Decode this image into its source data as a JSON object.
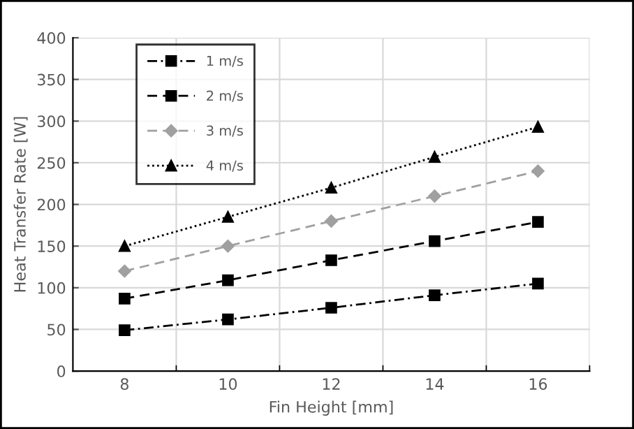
{
  "chart_data": {
    "type": "line",
    "xlabel": "Fin Height [mm]",
    "ylabel": "Heat Transfer Rate [W]",
    "x": [
      8,
      10,
      12,
      14,
      16
    ],
    "series": [
      {
        "name": "1 m/s",
        "color": "#000000",
        "values": [
          49,
          62,
          76,
          91,
          105
        ],
        "marker": "square",
        "line_style": "dashdot"
      },
      {
        "name": "2 m/s",
        "color": "#000000",
        "values": [
          87,
          109,
          133,
          156,
          179
        ],
        "marker": "square",
        "line_style": "dashed"
      },
      {
        "name": "3 m/s",
        "color": "#a0a0a0",
        "values": [
          120,
          150,
          180,
          210,
          240
        ],
        "marker": "diamond",
        "line_style": "dashed"
      },
      {
        "name": "4 m/s",
        "color": "#000000",
        "values": [
          150,
          185,
          220,
          257,
          293
        ],
        "marker": "triangle",
        "line_style": "dotted"
      }
    ],
    "xlim": [
      7,
      17
    ],
    "xticks": [
      {
        "value": 9,
        "label": null
      },
      8,
      10,
      {
        "value": 11,
        "label": null
      },
      12,
      {
        "value": 13,
        "label": null
      },
      14,
      {
        "value": 15,
        "label": null
      },
      16,
      {
        "value": 17,
        "label": null
      }
    ],
    "ylim": [
      0,
      400
    ],
    "yticks": [
      0,
      50,
      100,
      150,
      200,
      250,
      300,
      350,
      400
    ],
    "grid": true,
    "legend": "top left"
  }
}
